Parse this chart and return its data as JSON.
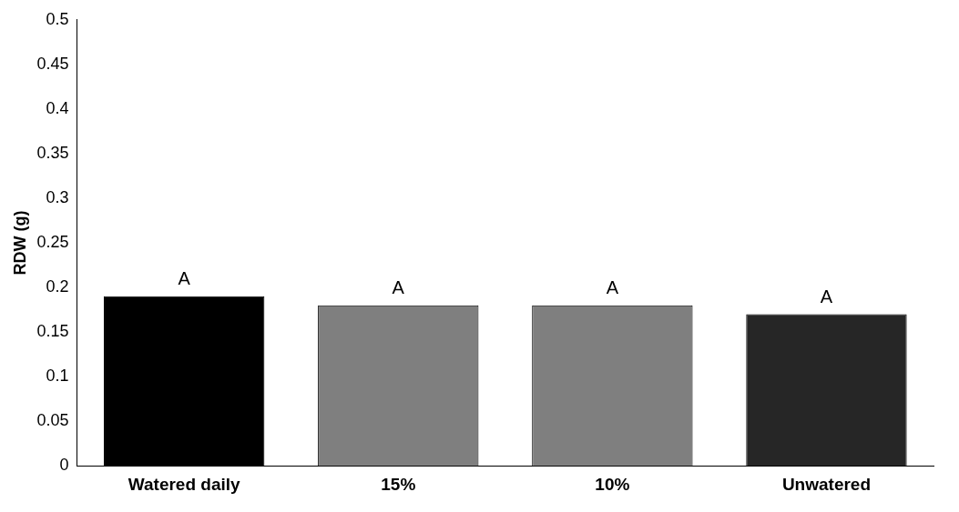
{
  "chart_data": {
    "type": "bar",
    "ylabel": "RDW (g)",
    "categories": [
      "Watered daily",
      "15%",
      "10%",
      "Unwatered"
    ],
    "values": [
      0.19,
      0.18,
      0.18,
      0.17
    ],
    "colors": [
      "#000000",
      "#7f7f7f",
      "#7f7f7f",
      "#262626"
    ],
    "ylim": [
      0,
      0.5
    ],
    "yticks": [
      0,
      0.05,
      0.1,
      0.15,
      0.2,
      0.25,
      0.3,
      0.35,
      0.4,
      0.45,
      0.5
    ],
    "grid": false,
    "legend": false,
    "annotations": [
      {
        "text": "A",
        "x": "Watered daily",
        "y": 0.19
      },
      {
        "text": "A",
        "x": "15%",
        "y": 0.18
      },
      {
        "text": "A",
        "x": "10%",
        "y": 0.18
      },
      {
        "text": "A",
        "x": "Unwatered",
        "y": 0.17
      }
    ]
  }
}
